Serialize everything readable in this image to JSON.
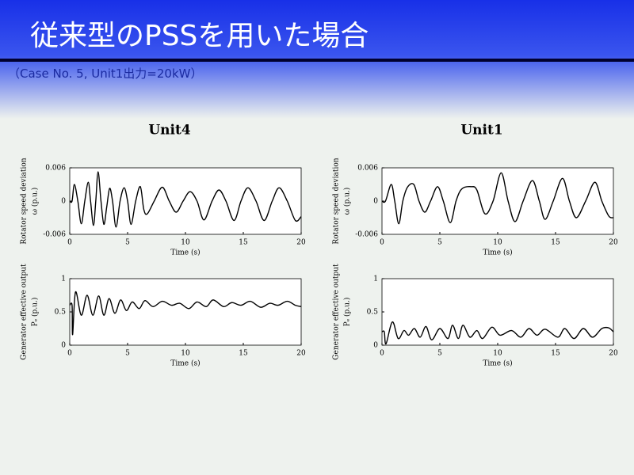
{
  "slide": {
    "title": "従来型のPSSを用いた場合",
    "subtitle": "（Case No. 5, Unit1出力=20kW）",
    "columns": [
      "Unit4",
      "Unit1"
    ]
  },
  "chart_data": [
    {
      "type": "line",
      "ylabel": [
        "Rotator speed deviation",
        "ω (p.u.)"
      ],
      "xlabel": "Time (s)",
      "xlim": [
        0,
        20
      ],
      "xticks": [
        0,
        5,
        10,
        15,
        20
      ],
      "ylim": [
        -0.006,
        0.006
      ],
      "yticks": [
        -0.006,
        0,
        0.006
      ],
      "x": [
        0,
        0.2,
        0.4,
        0.7,
        1.0,
        1.3,
        1.6,
        1.8,
        2.05,
        2.25,
        2.45,
        2.7,
        2.95,
        3.2,
        3.45,
        3.7,
        4.0,
        4.35,
        4.7,
        5.0,
        5.3,
        5.7,
        6.1,
        6.4,
        6.7,
        7.3,
        8.0,
        8.6,
        9.2,
        9.8,
        10.4,
        11.0,
        11.6,
        12.3,
        12.9,
        13.5,
        14.2,
        14.8,
        15.4,
        16.1,
        16.8,
        17.5,
        18.1,
        18.8,
        19.5,
        20
      ],
      "series": [
        {
          "color": "#000000",
          "values": [
            0,
            0,
            0.003,
            0,
            -0.0041,
            0,
            0.0034,
            0,
            -0.0044,
            0,
            0.0053,
            0,
            -0.0042,
            -0.001,
            0.0023,
            0,
            -0.0047,
            0,
            0.0024,
            0,
            -0.0042,
            0,
            0.0026,
            -0.0015,
            -0.0023,
            0,
            0.0025,
            0,
            -0.002,
            0,
            0.0017,
            0,
            -0.0034,
            0,
            0.002,
            0,
            -0.0035,
            0,
            0.0024,
            0,
            -0.0035,
            0,
            0.0024,
            0,
            -0.0035,
            -0.0028
          ]
        }
      ]
    },
    {
      "type": "line",
      "ylabel": [
        "Generator effective output",
        "Pₑ (p.u.)"
      ],
      "xlabel": "Time (s)",
      "xlim": [
        0,
        20
      ],
      "xticks": [
        0,
        5,
        10,
        15,
        20
      ],
      "ylim": [
        0,
        1
      ],
      "yticks": [
        0,
        0.5,
        1
      ],
      "x": [
        0,
        0.2,
        0.25,
        0.5,
        1.0,
        1.5,
        2.0,
        2.5,
        2.95,
        3.4,
        3.9,
        4.4,
        4.9,
        5.4,
        6.0,
        6.5,
        7.2,
        8.0,
        8.8,
        9.5,
        10.3,
        11.0,
        11.8,
        12.4,
        13.3,
        14.0,
        14.8,
        15.6,
        16.5,
        17.3,
        18.0,
        18.8,
        19.5,
        20
      ],
      "series": [
        {
          "color": "#000000",
          "values": [
            0.6,
            0.6,
            0.16,
            0.8,
            0.45,
            0.75,
            0.45,
            0.74,
            0.45,
            0.7,
            0.48,
            0.68,
            0.52,
            0.65,
            0.55,
            0.67,
            0.58,
            0.66,
            0.6,
            0.63,
            0.55,
            0.65,
            0.58,
            0.68,
            0.58,
            0.64,
            0.6,
            0.66,
            0.57,
            0.63,
            0.6,
            0.66,
            0.6,
            0.58
          ]
        }
      ]
    },
    {
      "type": "line",
      "ylabel": [
        "Rotator speed deviation",
        "ω (p.u.)"
      ],
      "xlabel": "Time (s)",
      "xlim": [
        0,
        20
      ],
      "xticks": [
        0,
        5,
        10,
        15,
        20
      ],
      "ylim": [
        -0.006,
        0.006
      ],
      "yticks": [
        -0.006,
        0,
        0.006
      ],
      "x": [
        0,
        0.3,
        0.8,
        1.1,
        1.45,
        1.8,
        2.2,
        2.75,
        3.2,
        3.7,
        4.2,
        4.8,
        5.3,
        5.9,
        6.4,
        6.9,
        7.7,
        8.2,
        8.9,
        9.6,
        10.3,
        10.9,
        11.5,
        12.2,
        13.0,
        13.6,
        14.1,
        14.8,
        15.6,
        16.2,
        16.8,
        17.6,
        18.4,
        19.0,
        19.6,
        20
      ],
      "series": [
        {
          "color": "#000000",
          "values": [
            0,
            0,
            0.003,
            0,
            -0.0041,
            0,
            0.0025,
            0.003,
            0,
            -0.002,
            0,
            0.0026,
            0,
            -0.0039,
            0,
            0.0022,
            0.0026,
            0.002,
            -0.0023,
            0,
            0.0051,
            0,
            -0.0037,
            0,
            0.0037,
            0,
            -0.0033,
            0,
            0.0041,
            0,
            -0.003,
            0,
            0.0034,
            0,
            -0.0027,
            -0.003
          ]
        }
      ]
    },
    {
      "type": "line",
      "ylabel": [
        "Generator effective output",
        "Pₑ (p.u.)"
      ],
      "xlabel": "Time (s)",
      "xlim": [
        0,
        20
      ],
      "xticks": [
        0,
        5,
        10,
        15,
        20
      ],
      "ylim": [
        0,
        1
      ],
      "yticks": [
        0,
        0.5,
        1
      ],
      "x": [
        0,
        0.2,
        0.35,
        0.9,
        1.4,
        1.9,
        2.3,
        2.8,
        3.3,
        3.8,
        4.3,
        5.0,
        5.7,
        6.1,
        6.6,
        7.0,
        7.6,
        8.2,
        8.7,
        9.5,
        10.2,
        11.2,
        12.0,
        12.7,
        13.4,
        14.1,
        15.2,
        15.8,
        16.6,
        17.4,
        18.2,
        19.0,
        19.6,
        20
      ],
      "series": [
        {
          "color": "#000000",
          "values": [
            0.2,
            0.2,
            0.02,
            0.35,
            0.1,
            0.22,
            0.15,
            0.25,
            0.12,
            0.28,
            0.08,
            0.25,
            0.1,
            0.3,
            0.1,
            0.3,
            0.12,
            0.22,
            0.1,
            0.27,
            0.15,
            0.22,
            0.12,
            0.25,
            0.15,
            0.24,
            0.12,
            0.25,
            0.1,
            0.25,
            0.12,
            0.25,
            0.26,
            0.2
          ]
        }
      ]
    }
  ]
}
